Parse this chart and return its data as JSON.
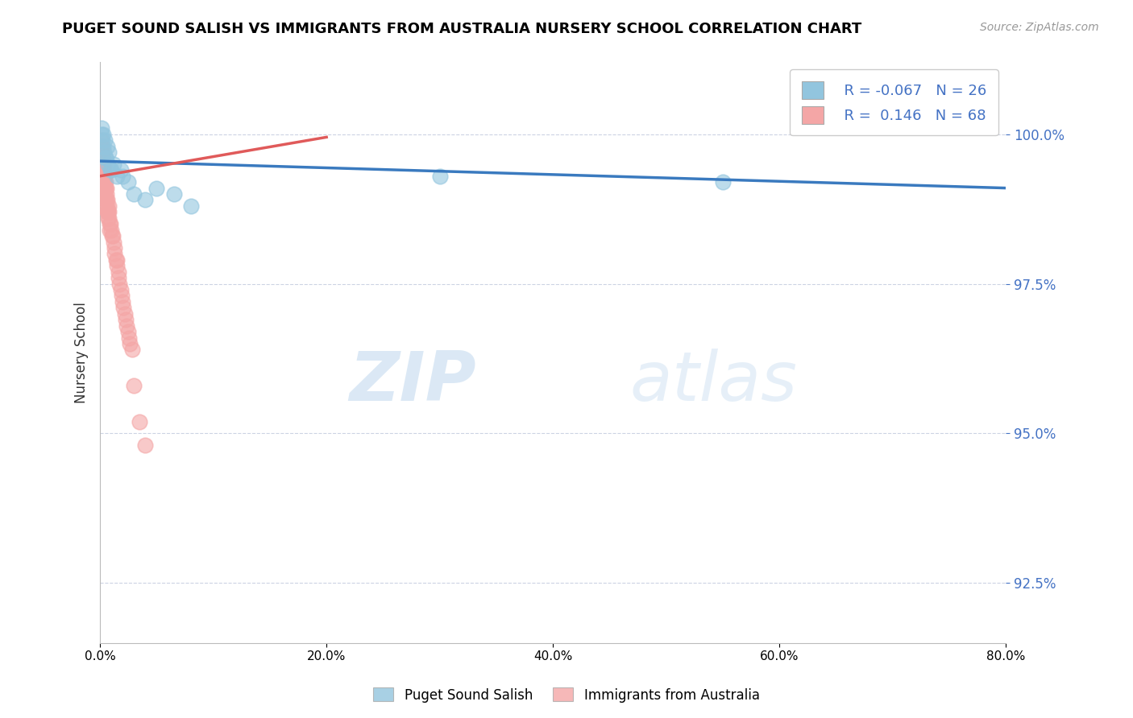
{
  "title": "PUGET SOUND SALISH VS IMMIGRANTS FROM AUSTRALIA NURSERY SCHOOL CORRELATION CHART",
  "source_text": "Source: ZipAtlas.com",
  "ylabel": "Nursery School",
  "watermark_zip": "ZIP",
  "watermark_atlas": "atlas",
  "xlim": [
    0.0,
    80.0
  ],
  "ylim": [
    91.5,
    101.2
  ],
  "yticks": [
    92.5,
    95.0,
    97.5,
    100.0
  ],
  "xticks": [
    0.0,
    20.0,
    40.0,
    60.0,
    80.0
  ],
  "blue_R": -0.067,
  "blue_N": 26,
  "pink_R": 0.146,
  "pink_N": 68,
  "blue_color": "#92c5de",
  "pink_color": "#f4a6a6",
  "blue_line_color": "#3a7abf",
  "pink_line_color": "#e05a5a",
  "legend_label_blue": "Puget Sound Salish",
  "legend_label_pink": "Immigrants from Australia",
  "blue_scatter_x": [
    0.1,
    0.15,
    0.2,
    0.25,
    0.3,
    0.35,
    0.4,
    0.5,
    0.6,
    0.7,
    0.8,
    1.0,
    1.2,
    1.5,
    1.8,
    2.0,
    2.5,
    3.0,
    4.0,
    5.0,
    6.5,
    8.0,
    30.0,
    55.0,
    0.45,
    0.9
  ],
  "blue_scatter_y": [
    100.0,
    100.1,
    99.9,
    100.0,
    99.8,
    99.7,
    99.9,
    99.6,
    99.8,
    99.5,
    99.7,
    99.4,
    99.5,
    99.3,
    99.4,
    99.3,
    99.2,
    99.0,
    98.9,
    99.1,
    99.0,
    98.8,
    99.3,
    99.2,
    99.6,
    99.4
  ],
  "pink_scatter_x": [
    0.05,
    0.08,
    0.1,
    0.12,
    0.15,
    0.18,
    0.2,
    0.22,
    0.25,
    0.28,
    0.3,
    0.32,
    0.35,
    0.38,
    0.4,
    0.42,
    0.45,
    0.48,
    0.5,
    0.55,
    0.6,
    0.65,
    0.7,
    0.75,
    0.8,
    0.9,
    1.0,
    1.1,
    1.2,
    1.3,
    1.5,
    1.7,
    2.0,
    2.3,
    2.6,
    3.0,
    3.5,
    4.0,
    0.13,
    0.23,
    0.33,
    0.43,
    0.53,
    0.63,
    0.73,
    0.83,
    1.4,
    1.6,
    1.9,
    2.2,
    2.5,
    2.8,
    0.16,
    0.26,
    0.36,
    0.46,
    0.56,
    0.66,
    0.76,
    0.86,
    1.05,
    1.25,
    1.45,
    1.65,
    1.85,
    2.05,
    2.25,
    2.55
  ],
  "pink_scatter_y": [
    99.8,
    99.9,
    99.7,
    99.6,
    99.8,
    99.5,
    99.4,
    99.7,
    99.3,
    99.6,
    99.4,
    99.2,
    99.5,
    99.1,
    99.3,
    99.0,
    98.9,
    99.2,
    98.8,
    99.1,
    98.7,
    98.9,
    98.6,
    98.8,
    98.7,
    98.5,
    98.4,
    98.3,
    98.2,
    98.0,
    97.8,
    97.5,
    97.2,
    96.8,
    96.5,
    95.8,
    95.2,
    94.8,
    99.6,
    99.5,
    99.3,
    99.2,
    99.0,
    98.8,
    98.7,
    98.5,
    97.9,
    97.6,
    97.3,
    97.0,
    96.7,
    96.4,
    99.7,
    99.5,
    99.4,
    99.1,
    98.9,
    98.7,
    98.6,
    98.4,
    98.3,
    98.1,
    97.9,
    97.7,
    97.4,
    97.1,
    96.9,
    96.6
  ],
  "blue_line_x0": 0.0,
  "blue_line_y0": 99.55,
  "blue_line_x1": 80.0,
  "blue_line_y1": 99.1,
  "pink_line_x0": 0.0,
  "pink_line_y0": 99.3,
  "pink_line_x1": 20.0,
  "pink_line_y1": 99.95
}
